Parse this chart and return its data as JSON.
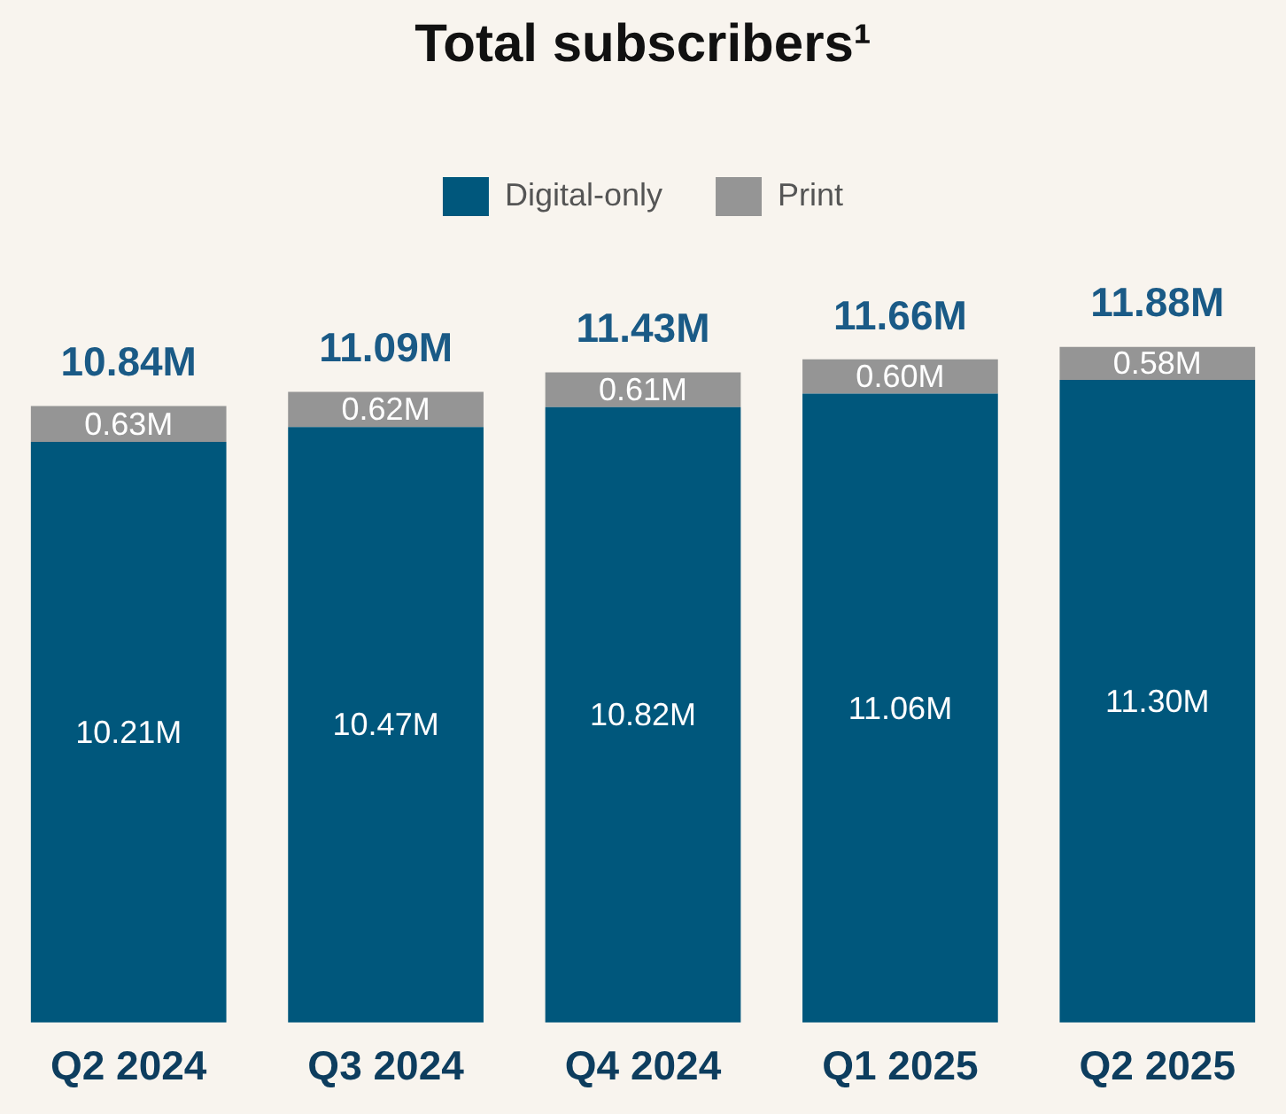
{
  "chart_data": {
    "type": "bar",
    "title": "Total subscribers¹",
    "categories": [
      "Q2 2024",
      "Q3 2024",
      "Q4 2024",
      "Q1 2025",
      "Q2 2025"
    ],
    "stacked": true,
    "tick_labels": "x",
    "grid": false,
    "legend": "top",
    "series": [
      {
        "name": "Digital-only",
        "color": "#00577c",
        "values": [
          10.21,
          10.47,
          10.82,
          11.06,
          11.3
        ],
        "value_labels": [
          "10.21M",
          "10.47M",
          "10.82M",
          "11.06M",
          "11.30M"
        ]
      },
      {
        "name": "Print",
        "color": "#959595",
        "values": [
          0.63,
          0.62,
          0.61,
          0.6,
          0.58
        ],
        "value_labels": [
          "0.63M",
          "0.62M",
          "0.61M",
          "0.60M",
          "0.58M"
        ]
      }
    ],
    "totals": [
      "10.84M",
      "11.09M",
      "11.43M",
      "11.66M",
      "11.88M"
    ]
  }
}
